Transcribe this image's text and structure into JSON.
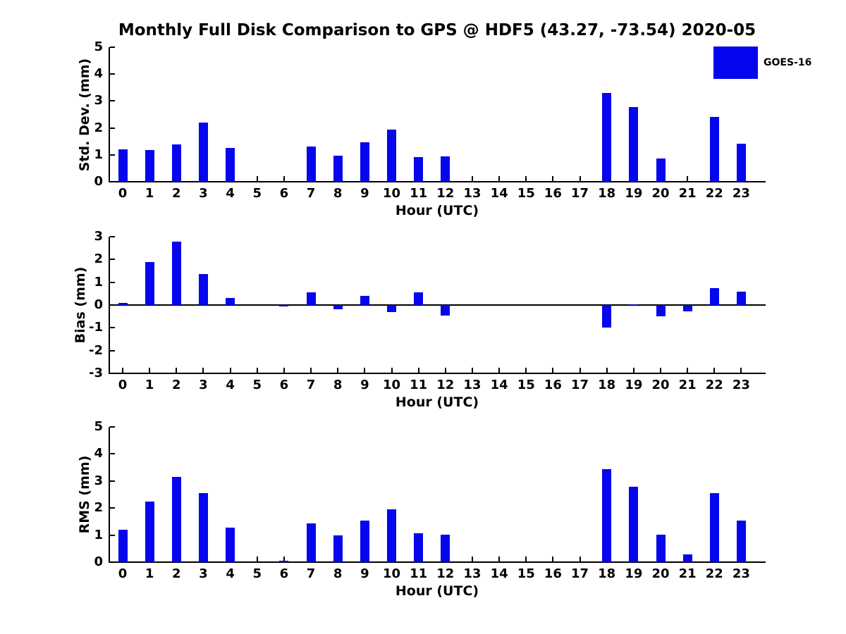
{
  "title": "Monthly Full Disk Comparison to GPS @ HDF5 (43.27, -73.54) 2020-05",
  "legend": {
    "label": "GOES-16"
  },
  "colors": {
    "bar": "#0505EE",
    "axis": "#000000",
    "text": "#000000",
    "background": "#FFFFFF"
  },
  "chart_data": [
    {
      "type": "bar",
      "ylabel": "Std. Dev. (mm)",
      "xlabel": "Hour (UTC)",
      "ylim": [
        0,
        5
      ],
      "yticks": [
        0,
        1,
        2,
        3,
        4,
        5
      ],
      "grid": false,
      "legend_position": "upper right",
      "categories": [
        "0",
        "1",
        "2",
        "3",
        "4",
        "5",
        "6",
        "7",
        "8",
        "9",
        "10",
        "11",
        "12",
        "13",
        "14",
        "15",
        "16",
        "17",
        "18",
        "19",
        "20",
        "21",
        "22",
        "23"
      ],
      "series": [
        {
          "name": "GOES-16",
          "values": [
            1.2,
            1.18,
            1.4,
            2.2,
            1.25,
            0,
            0,
            1.3,
            0.97,
            1.46,
            1.93,
            0.91,
            0.94,
            0,
            0,
            0,
            0,
            0,
            3.3,
            2.77,
            0.86,
            0,
            2.42,
            1.41
          ]
        }
      ]
    },
    {
      "type": "bar",
      "ylabel": "Bias (mm)",
      "xlabel": "Hour (UTC)",
      "ylim": [
        -3,
        3
      ],
      "yticks": [
        3,
        2,
        1,
        0,
        -1,
        -2,
        -3
      ],
      "grid": false,
      "zero_line": true,
      "categories": [
        "0",
        "1",
        "2",
        "3",
        "4",
        "5",
        "6",
        "7",
        "8",
        "9",
        "10",
        "11",
        "12",
        "13",
        "14",
        "15",
        "16",
        "17",
        "18",
        "19",
        "20",
        "21",
        "22",
        "23"
      ],
      "series": [
        {
          "name": "GOES-16",
          "values": [
            0.1,
            1.89,
            2.79,
            1.36,
            0.3,
            0,
            -0.06,
            0.57,
            -0.18,
            0.39,
            -0.31,
            0.57,
            -0.45,
            0,
            0,
            0,
            0,
            0,
            -0.98,
            0.04,
            -0.5,
            -0.28,
            0.74,
            0.59
          ]
        }
      ]
    },
    {
      "type": "bar",
      "ylabel": "RMS (mm)",
      "xlabel": "Hour (UTC)",
      "ylim": [
        0,
        5
      ],
      "yticks": [
        0,
        1,
        2,
        3,
        4,
        5
      ],
      "grid": false,
      "categories": [
        "0",
        "1",
        "2",
        "3",
        "4",
        "5",
        "6",
        "7",
        "8",
        "9",
        "10",
        "11",
        "12",
        "13",
        "14",
        "15",
        "16",
        "17",
        "18",
        "19",
        "20",
        "21",
        "22",
        "23"
      ],
      "series": [
        {
          "name": "GOES-16",
          "values": [
            1.2,
            2.24,
            3.14,
            2.56,
            1.27,
            0,
            0.06,
            1.44,
            0.98,
            1.54,
            1.95,
            1.06,
            1.01,
            0,
            0,
            0,
            0,
            0,
            3.43,
            2.78,
            1.01,
            0.29,
            2.54,
            1.53
          ]
        }
      ]
    }
  ]
}
